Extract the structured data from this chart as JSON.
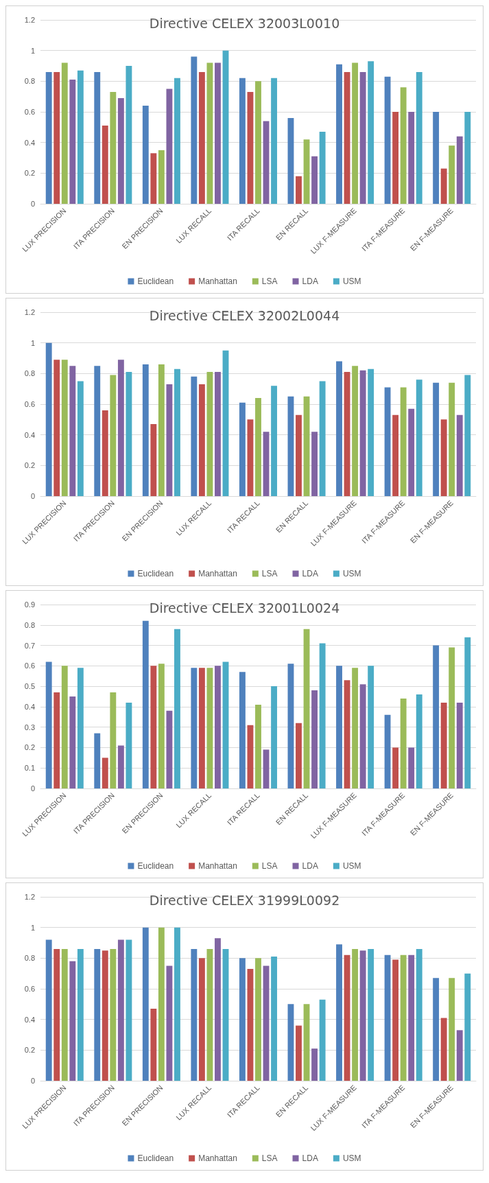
{
  "chart_data": [
    {
      "type": "bar",
      "title": "Directive CELEX 32003L0010",
      "categories": [
        "LUX PRECISION",
        "ITA PRECISION",
        "EN PRECISION",
        "LUX RECALL",
        "ITA RECALL",
        "EN RECALL",
        "LUX F-MEASURE",
        "ITA F-MEASURE",
        "EN F-MEASURE"
      ],
      "series": [
        {
          "name": "Euclidean",
          "color": "#4f81bd",
          "values": [
            0.86,
            0.86,
            0.64,
            0.96,
            0.82,
            0.56,
            0.91,
            0.83,
            0.6
          ]
        },
        {
          "name": "Manhattan",
          "color": "#c0504d",
          "values": [
            0.86,
            0.51,
            0.33,
            0.86,
            0.73,
            0.18,
            0.86,
            0.6,
            0.23
          ]
        },
        {
          "name": "LSA",
          "color": "#9bbb59",
          "values": [
            0.92,
            0.73,
            0.35,
            0.92,
            0.8,
            0.42,
            0.92,
            0.76,
            0.38
          ]
        },
        {
          "name": "LDA",
          "color": "#8064a2",
          "values": [
            0.81,
            0.69,
            0.75,
            0.92,
            0.54,
            0.31,
            0.86,
            0.6,
            0.44
          ]
        },
        {
          "name": "USM",
          "color": "#4bacc6",
          "values": [
            0.87,
            0.9,
            0.82,
            1.0,
            0.82,
            0.47,
            0.93,
            0.86,
            0.6
          ]
        }
      ],
      "ylim": [
        0,
        1.2
      ],
      "yticks": [
        0,
        0.2,
        0.4,
        0.6,
        0.8,
        1,
        1.2
      ],
      "grid": "y",
      "legend": "bottom"
    },
    {
      "type": "bar",
      "title": "Directive CELEX 32002L0044",
      "categories": [
        "LUX PRECISION",
        "ITA PRECISION",
        "EN PRECISION",
        "LUX RECALL",
        "ITA RECALL",
        "EN RECALL",
        "LUX F-MEASURE",
        "ITA F-MEASURE",
        "EN F-MEASURE"
      ],
      "series": [
        {
          "name": "Euclidean",
          "color": "#4f81bd",
          "values": [
            1.0,
            0.85,
            0.86,
            0.78,
            0.61,
            0.65,
            0.88,
            0.71,
            0.74
          ]
        },
        {
          "name": "Manhattan",
          "color": "#c0504d",
          "values": [
            0.89,
            0.56,
            0.47,
            0.73,
            0.5,
            0.53,
            0.81,
            0.53,
            0.5
          ]
        },
        {
          "name": "LSA",
          "color": "#9bbb59",
          "values": [
            0.89,
            0.79,
            0.86,
            0.81,
            0.64,
            0.65,
            0.85,
            0.71,
            0.74
          ]
        },
        {
          "name": "LDA",
          "color": "#8064a2",
          "values": [
            0.85,
            0.89,
            0.73,
            0.81,
            0.42,
            0.42,
            0.82,
            0.57,
            0.53
          ]
        },
        {
          "name": "USM",
          "color": "#4bacc6",
          "values": [
            0.75,
            0.81,
            0.83,
            0.95,
            0.72,
            0.75,
            0.83,
            0.76,
            0.79
          ]
        }
      ],
      "ylim": [
        0,
        1.2
      ],
      "yticks": [
        0,
        0.2,
        0.4,
        0.6,
        0.8,
        1,
        1.2
      ],
      "grid": "y",
      "legend": "bottom"
    },
    {
      "type": "bar",
      "title": "Directive CELEX 32001L0024",
      "categories": [
        "LUX PRECISION",
        "ITA PRECISION",
        "EN PRECISION",
        "LUX RECALL",
        "ITA RECALL",
        "EN RECALL",
        "LUX F-MEASURE",
        "ITA F-MEASURE",
        "EN F-MEASURE"
      ],
      "series": [
        {
          "name": "Euclidean",
          "color": "#4f81bd",
          "values": [
            0.62,
            0.27,
            0.82,
            0.59,
            0.57,
            0.61,
            0.6,
            0.36,
            0.7
          ]
        },
        {
          "name": "Manhattan",
          "color": "#c0504d",
          "values": [
            0.47,
            0.15,
            0.6,
            0.59,
            0.31,
            0.32,
            0.53,
            0.2,
            0.42
          ]
        },
        {
          "name": "LSA",
          "color": "#9bbb59",
          "values": [
            0.6,
            0.47,
            0.61,
            0.59,
            0.41,
            0.78,
            0.59,
            0.44,
            0.69
          ]
        },
        {
          "name": "LDA",
          "color": "#8064a2",
          "values": [
            0.45,
            0.21,
            0.38,
            0.6,
            0.19,
            0.48,
            0.51,
            0.2,
            0.42
          ]
        },
        {
          "name": "USM",
          "color": "#4bacc6",
          "values": [
            0.59,
            0.42,
            0.78,
            0.62,
            0.5,
            0.71,
            0.6,
            0.46,
            0.74
          ]
        }
      ],
      "ylim": [
        0,
        0.9
      ],
      "yticks": [
        0,
        0.1,
        0.2,
        0.3,
        0.4,
        0.5,
        0.6,
        0.7,
        0.8,
        0.9
      ],
      "grid": "y",
      "legend": "bottom"
    },
    {
      "type": "bar",
      "title": "Directive CELEX 31999L0092",
      "categories": [
        "LUX PRECISION",
        "ITA PRECISION",
        "EN PRECISION",
        "LUX RECALL",
        "ITA RECALL",
        "EN RECALL",
        "LUX F-MEASURE",
        "ITA F-MEASURE",
        "EN F-MEASURE"
      ],
      "series": [
        {
          "name": "Euclidean",
          "color": "#4f81bd",
          "values": [
            0.92,
            0.86,
            1.0,
            0.86,
            0.8,
            0.5,
            0.89,
            0.82,
            0.67
          ]
        },
        {
          "name": "Manhattan",
          "color": "#c0504d",
          "values": [
            0.86,
            0.85,
            0.47,
            0.8,
            0.73,
            0.36,
            0.82,
            0.79,
            0.41
          ]
        },
        {
          "name": "LSA",
          "color": "#9bbb59",
          "values": [
            0.86,
            0.86,
            1.0,
            0.86,
            0.8,
            0.5,
            0.86,
            0.82,
            0.67
          ]
        },
        {
          "name": "LDA",
          "color": "#8064a2",
          "values": [
            0.78,
            0.92,
            0.75,
            0.93,
            0.75,
            0.21,
            0.85,
            0.82,
            0.33
          ]
        },
        {
          "name": "USM",
          "color": "#4bacc6",
          "values": [
            0.86,
            0.92,
            1.0,
            0.86,
            0.81,
            0.53,
            0.86,
            0.86,
            0.7
          ]
        }
      ],
      "ylim": [
        0,
        1.2
      ],
      "yticks": [
        0,
        0.2,
        0.4,
        0.6,
        0.8,
        1,
        1.2
      ],
      "grid": "y",
      "legend": "bottom"
    }
  ]
}
